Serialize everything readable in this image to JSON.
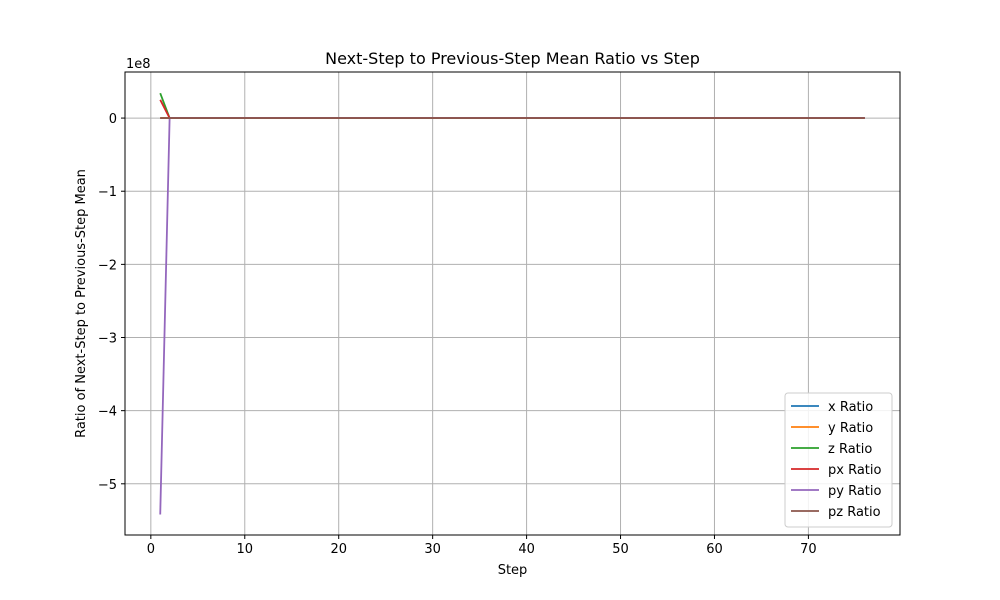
{
  "chart_data": {
    "type": "line",
    "title": "Next-Step to Previous-Step Mean Ratio vs Step",
    "xlabel": "Step",
    "ylabel": "Ratio of Next-Step to Previous-Step Mean",
    "y_offset_text": "1e8",
    "y_scale_factor": 100000000,
    "xlim": [
      -2.75,
      79.75
    ],
    "ylim": [
      -5.7,
      0.63
    ],
    "x_ticks": [
      0,
      10,
      20,
      30,
      40,
      50,
      60,
      70
    ],
    "y_ticks": [
      0,
      -1,
      -2,
      -3,
      -4,
      -5
    ],
    "y_tick_labels": [
      "0",
      "−1",
      "−2",
      "−3",
      "−4",
      "−5"
    ],
    "grid": true,
    "legend_position": "lower-right",
    "series": [
      {
        "name": "x Ratio",
        "color": "#1f77b4",
        "x": [
          1,
          2,
          76
        ],
        "y": [
          0.0,
          0.0,
          0.0
        ]
      },
      {
        "name": "y Ratio",
        "color": "#ff7f0e",
        "x": [
          1,
          2,
          76
        ],
        "y": [
          0.0,
          0.0,
          0.0
        ]
      },
      {
        "name": "z Ratio",
        "color": "#2ca02c",
        "x": [
          1,
          2,
          76
        ],
        "y": [
          0.34,
          0.0,
          0.0
        ]
      },
      {
        "name": "px Ratio",
        "color": "#d62728",
        "x": [
          1,
          2,
          76
        ],
        "y": [
          0.25,
          0.0,
          0.0
        ]
      },
      {
        "name": "py Ratio",
        "color": "#9467bd",
        "x": [
          1,
          2,
          76
        ],
        "y": [
          -5.42,
          0.0,
          0.0
        ]
      },
      {
        "name": "pz Ratio",
        "color": "#8c564b",
        "x": [
          1,
          2,
          76
        ],
        "y": [
          0.0,
          0.0,
          0.0
        ]
      }
    ]
  }
}
